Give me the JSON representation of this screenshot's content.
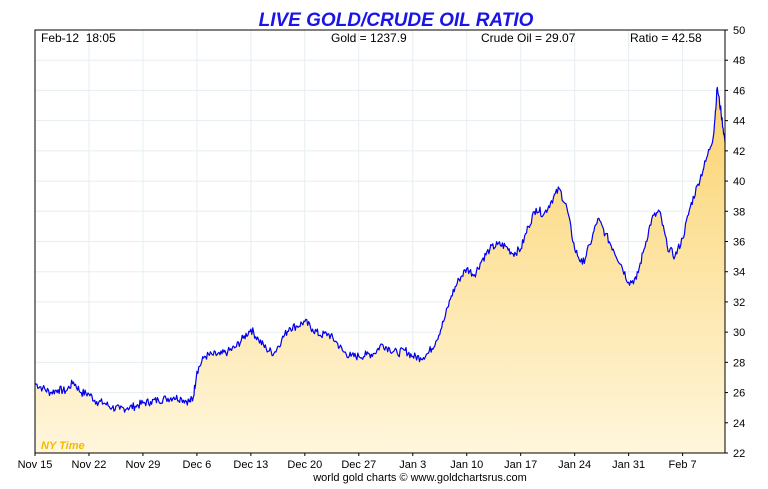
{
  "chart_data": {
    "type": "area",
    "title": "LIVE GOLD/CRUDE OIL RATIO",
    "header": {
      "timestamp": "Feb-12  18:05",
      "gold": "Gold = 1237.9",
      "crude": "Crude Oil = 29.07",
      "ratio": "Ratio = 42.58"
    },
    "timezone_label": "NY Time",
    "footer": "world gold charts © www.goldchartsrus.com",
    "x_ticks": [
      "Nov 15",
      "Nov 22",
      "Nov 29",
      "Dec 6",
      "Dec 13",
      "Dec 20",
      "Dec 27",
      "Jan 3",
      "Jan 10",
      "Jan 17",
      "Jan 24",
      "Jan 31",
      "Feb 7"
    ],
    "x_tick_days": [
      0,
      7,
      14,
      21,
      28,
      35,
      42,
      49,
      56,
      63,
      70,
      77,
      84
    ],
    "x_range_days": [
      0,
      89.5
    ],
    "y_ticks": [
      22,
      24,
      26,
      28,
      30,
      32,
      34,
      36,
      38,
      40,
      42,
      44,
      46,
      48,
      50
    ],
    "ylim": [
      22,
      50
    ],
    "y_axis_side": "right",
    "grid": true,
    "series": [
      {
        "line_color": "#0000ee",
        "fill_top": "#fbd36e",
        "fill_bottom": "#fff6dc",
        "points": [
          [
            0,
            26.6
          ],
          [
            1,
            26.3
          ],
          [
            2,
            26.0
          ],
          [
            3,
            26.2
          ],
          [
            4,
            26.1
          ],
          [
            5,
            26.7
          ],
          [
            6,
            26.0
          ],
          [
            7,
            25.9
          ],
          [
            8,
            25.4
          ],
          [
            9,
            25.3
          ],
          [
            10,
            25.0
          ],
          [
            11,
            24.9
          ],
          [
            12,
            25.0
          ],
          [
            13,
            25.1
          ],
          [
            14,
            25.3
          ],
          [
            15,
            25.4
          ],
          [
            16,
            25.5
          ],
          [
            17,
            25.6
          ],
          [
            18,
            25.7
          ],
          [
            19,
            25.6
          ],
          [
            20,
            25.4
          ],
          [
            20.5,
            25.6
          ],
          [
            21,
            27.4
          ],
          [
            22,
            28.4
          ],
          [
            23,
            28.5
          ],
          [
            24,
            28.5
          ],
          [
            25,
            28.7
          ],
          [
            26,
            29.0
          ],
          [
            27,
            29.6
          ],
          [
            28,
            30.2
          ],
          [
            29,
            29.5
          ],
          [
            30,
            28.9
          ],
          [
            31,
            28.6
          ],
          [
            32,
            29.5
          ],
          [
            33,
            30.3
          ],
          [
            34,
            30.4
          ],
          [
            35,
            30.7
          ],
          [
            36,
            30.2
          ],
          [
            37,
            29.8
          ],
          [
            38,
            29.9
          ],
          [
            39,
            29.4
          ],
          [
            40,
            28.7
          ],
          [
            41,
            28.4
          ],
          [
            42,
            28.4
          ],
          [
            43,
            28.5
          ],
          [
            44,
            28.6
          ],
          [
            45,
            29.2
          ],
          [
            46,
            28.9
          ],
          [
            47,
            28.6
          ],
          [
            48,
            28.8
          ],
          [
            49,
            28.4
          ],
          [
            50,
            28.3
          ],
          [
            51,
            28.6
          ],
          [
            52,
            29.4
          ],
          [
            53,
            30.7
          ],
          [
            54,
            32.4
          ],
          [
            55,
            33.5
          ],
          [
            56,
            34.2
          ],
          [
            57,
            33.8
          ],
          [
            58,
            34.8
          ],
          [
            59,
            35.5
          ],
          [
            60,
            35.8
          ],
          [
            61,
            35.7
          ],
          [
            62,
            35.2
          ],
          [
            63,
            35.5
          ],
          [
            64,
            37.0
          ],
          [
            65,
            38.2
          ],
          [
            66,
            37.8
          ],
          [
            67,
            38.7
          ],
          [
            68,
            39.5
          ],
          [
            69,
            38.2
          ],
          [
            70,
            35.5
          ],
          [
            71,
            34.5
          ],
          [
            72,
            35.8
          ],
          [
            73,
            37.5
          ],
          [
            74,
            36.5
          ],
          [
            75,
            35.5
          ],
          [
            76,
            34.5
          ],
          [
            77,
            33.3
          ],
          [
            78,
            33.5
          ],
          [
            79,
            35.5
          ],
          [
            80,
            37.5
          ],
          [
            81,
            38.0
          ],
          [
            82,
            35.7
          ],
          [
            83,
            35.0
          ],
          [
            84,
            36.2
          ],
          [
            85,
            38.3
          ],
          [
            86,
            39.8
          ],
          [
            87,
            41.3
          ],
          [
            88,
            43.0
          ],
          [
            88.5,
            46.2
          ],
          [
            89,
            44.5
          ],
          [
            89.5,
            42.6
          ]
        ]
      }
    ]
  }
}
